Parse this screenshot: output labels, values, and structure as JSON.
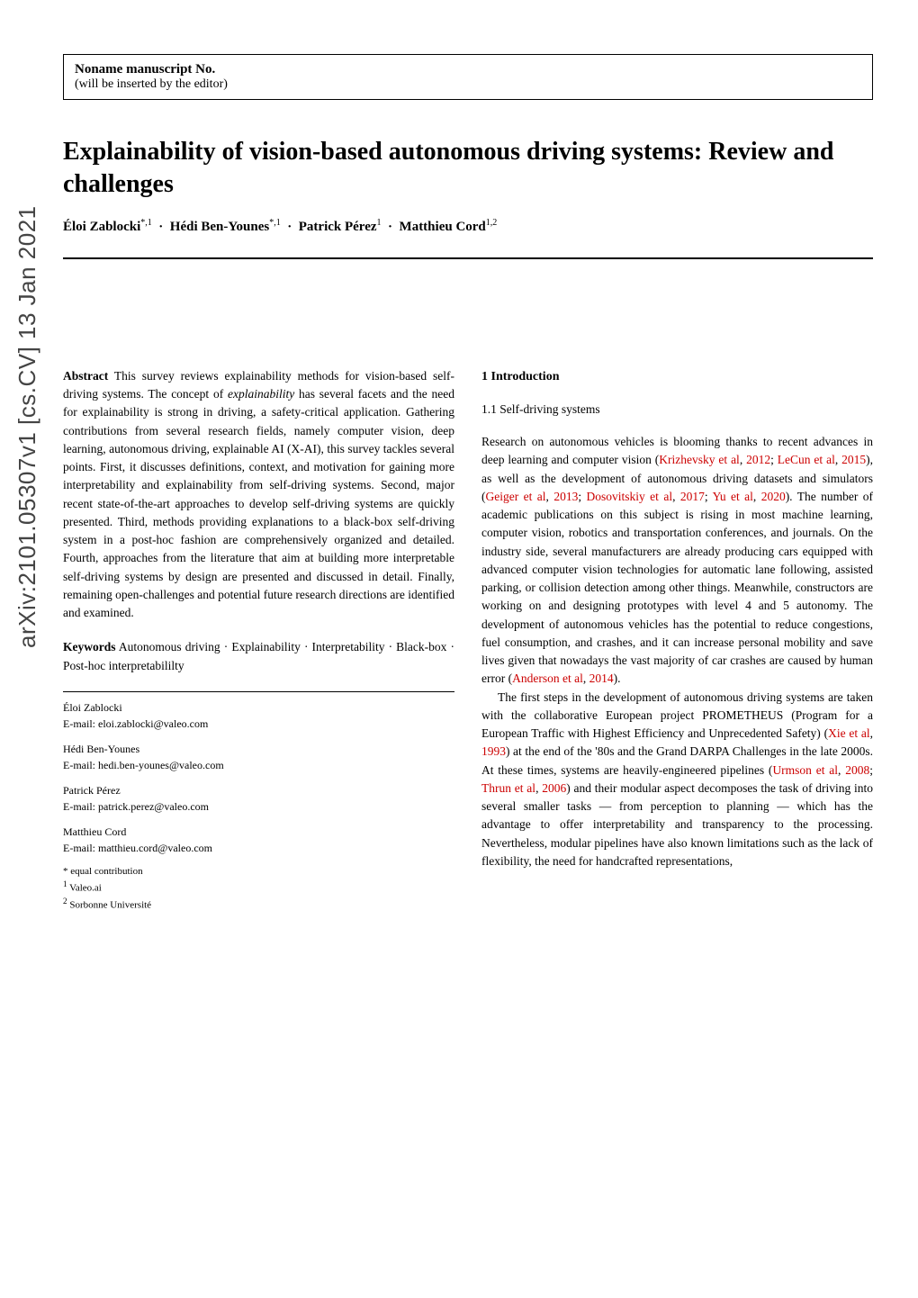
{
  "arxiv_id": "arXiv:2101.05307v1  [cs.CV]  13 Jan 2021",
  "header": {
    "manuscript_no": "Noname manuscript No.",
    "inserted_by": "(will be inserted by the editor)"
  },
  "title": "Explainability of vision-based autonomous driving systems: Review and challenges",
  "authors_html": "Éloi Zablocki*,1  ·  Hédi Ben-Younes*,1  ·  Patrick Pérez1  ·  Matthieu Cord1,2",
  "abstract": {
    "label": "Abstract",
    "text": " This survey reviews explainability methods for vision-based self-driving systems. The concept of explainability has several facets and the need for explainability is strong in driving, a safety-critical application. Gathering contributions from several research fields, namely computer vision, deep learning, autonomous driving, explainable AI (X-AI), this survey tackles several points. First, it discusses definitions, context, and motivation for gaining more interpretability and explainability from self-driving systems. Second, major recent state-of-the-art approaches to develop self-driving systems are quickly presented. Third, methods providing explanations to a black-box self-driving system in a post-hoc fashion are comprehensively organized and detailed. Fourth, approaches from the literature that aim at building more interpretable self-driving systems by design are presented and discussed in detail. Finally, remaining open-challenges and potential future research directions are identified and examined."
  },
  "keywords": {
    "label": "Keywords",
    "text": " Autonomous driving · Explainability · Interpretability · Black-box · Post-hoc interpretabililty"
  },
  "author_info": [
    {
      "name": "Éloi Zablocki",
      "email": "E-mail: eloi.zablocki@valeo.com"
    },
    {
      "name": "Hédi Ben-Younes",
      "email": "E-mail: hedi.ben-younes@valeo.com"
    },
    {
      "name": "Patrick Pérez",
      "email": "E-mail: patrick.perez@valeo.com"
    },
    {
      "name": "Matthieu Cord",
      "email": "E-mail: matthieu.cord@valeo.com"
    }
  ],
  "footnotes": {
    "star": "* equal contribution",
    "aff1": "1 Valeo.ai",
    "aff2": "2 Sorbonne Université"
  },
  "section1": {
    "heading": "1 Introduction",
    "sub1": "1.1 Self-driving systems",
    "para1_pre": "Research on autonomous vehicles is blooming thanks to recent advances in deep learning and computer vision (",
    "cite1": "Krizhevsky et al",
    "year1": "2012",
    "cite2": "LeCun et al",
    "year2": "2015",
    "para1_mid1": "), as well as the development of autonomous driving datasets and simulators (",
    "cite3": "Geiger et al",
    "year3": "2013",
    "cite4": "Dosovitskiy et al",
    "year4": "2017",
    "cite5": "Yu et al",
    "year5": "2020",
    "para1_mid2": "). The number of academic publications on this subject is rising in most machine learning, computer vision, robotics and transportation conferences, and journals. On the industry side, several manufacturers are already producing cars equipped with advanced computer vision technologies for automatic lane following, assisted parking, or collision detection among other things. Meanwhile, constructors are working on and designing prototypes with level 4 and 5 autonomy. The development of autonomous vehicles has the potential to reduce congestions, fuel consumption, and crashes, and it can increase personal mobility and save lives given that nowadays the vast majority of car crashes are caused by human error (",
    "cite6": "Anderson et al",
    "year6": "2014",
    "para1_end": ").",
    "para2_pre": "The first steps in the development of autonomous driving systems are taken with the collaborative European project PROMETHEUS (Program for a European Traffic with Highest Efficiency and Unprecedented Safety) (",
    "cite7": "Xie et al",
    "year7": "1993",
    "para2_mid": ") at the end of the '80s and the Grand DARPA Challenges in the late 2000s. At these times, systems are heavily-engineered pipelines (",
    "cite8": "Urmson et al",
    "year8": "2008",
    "cite9": "Thrun et al",
    "year9": "2006",
    "para2_end": ") and their modular aspect decomposes the task of driving into several smaller tasks — from perception to planning — which has the advantage to offer interpretability and transparency to the processing. Nevertheless, modular pipelines have also known limitations such as the lack of flexibility, the need for handcrafted representations,"
  },
  "colors": {
    "text": "#000000",
    "citation": "#cc0000",
    "arxiv": "#444444",
    "background": "#ffffff"
  }
}
